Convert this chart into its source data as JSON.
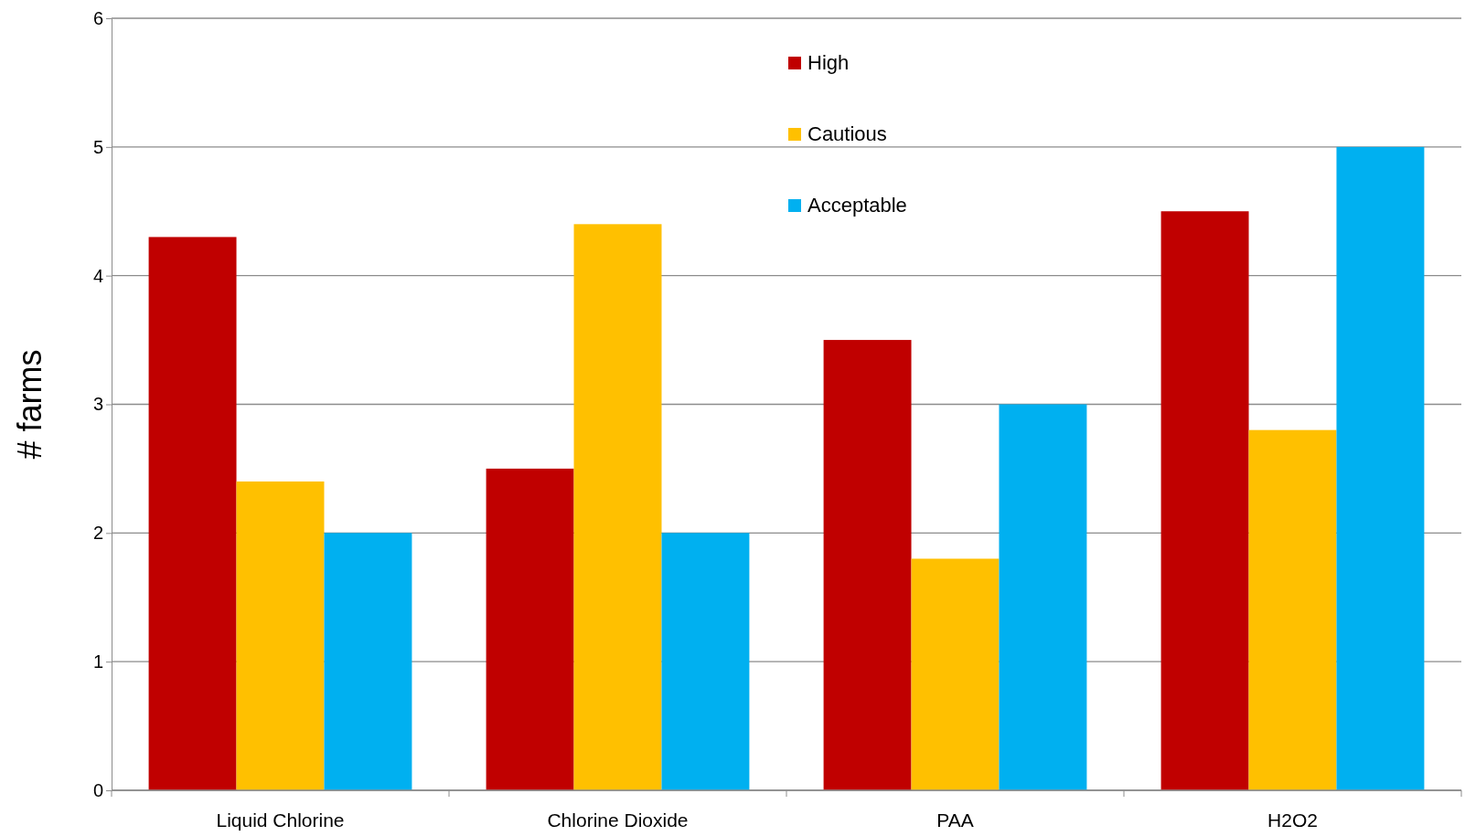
{
  "chart_data": {
    "type": "bar",
    "ylabel": "# farms",
    "categories": [
      "Liquid Chlorine",
      "Chlorine Dioxide",
      "PAA",
      "H2O2"
    ],
    "series": [
      {
        "name": "High",
        "color": "#c00000",
        "values": [
          4.3,
          2.5,
          3.5,
          4.5
        ]
      },
      {
        "name": "Cautious",
        "color": "#ffc000",
        "values": [
          2.4,
          4.4,
          1.8,
          2.8
        ]
      },
      {
        "name": "Acceptable",
        "color": "#00b0f0",
        "values": [
          2,
          2,
          3,
          5
        ]
      }
    ],
    "ylim": [
      0,
      6
    ],
    "yticks": [
      0,
      1,
      2,
      3,
      4,
      5,
      6
    ],
    "grid": "y",
    "legend": "top"
  }
}
